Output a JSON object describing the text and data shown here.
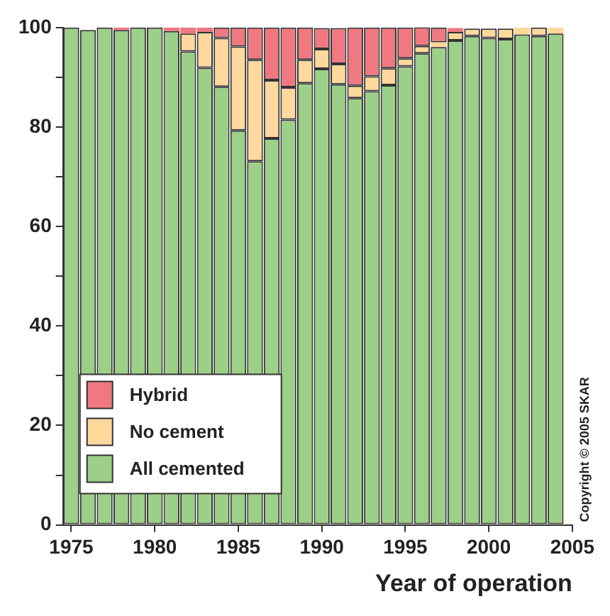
{
  "chart_data": {
    "type": "bar",
    "stacked": true,
    "xlabel": "Year of operation",
    "x": [
      1975,
      1976,
      1977,
      1978,
      1979,
      1980,
      1981,
      1982,
      1983,
      1984,
      1985,
      1986,
      1987,
      1988,
      1989,
      1990,
      1991,
      1992,
      1993,
      1994,
      1995,
      1996,
      1997,
      1998,
      1999,
      2000,
      2001,
      2002,
      2003,
      2004
    ],
    "series": [
      {
        "name": "All cemented",
        "color": "#9ccf88",
        "values": [
          100,
          99.5,
          100,
          99.5,
          100,
          100,
          99.3,
          95.2,
          91.9,
          88.1,
          79.3,
          73.1,
          77.7,
          81.5,
          88.8,
          91.7,
          88.6,
          85.8,
          87.2,
          88.4,
          92.2,
          94.8,
          96.1,
          97.4,
          98.3,
          97.9,
          97.7,
          98.6,
          98.3,
          98.8
        ]
      },
      {
        "name": "No cement",
        "color": "#fed89c",
        "values": [
          0,
          0,
          0,
          0,
          0,
          0,
          0,
          3.6,
          7.2,
          9.8,
          16.9,
          20.4,
          11.7,
          6.5,
          4.7,
          4.0,
          4.1,
          2.5,
          3.0,
          3.4,
          1.6,
          1.5,
          0.9,
          1.7,
          1.5,
          1.9,
          2.1,
          1.4,
          1.7,
          1.2
        ]
      },
      {
        "name": "Hybrid",
        "color": "#f07880",
        "values": [
          0,
          0,
          0,
          0.5,
          0,
          0,
          0.7,
          1.2,
          0.9,
          2.1,
          3.8,
          6.5,
          10.6,
          12.0,
          6.5,
          4.2,
          7.2,
          11.7,
          9.8,
          8.2,
          6.2,
          3.8,
          3.0,
          0.8,
          null,
          null,
          null,
          0,
          0,
          0
        ]
      }
    ],
    "xlim": [
      1974.5,
      2005
    ],
    "xticks": [
      1975,
      1980,
      1985,
      1990,
      1995,
      2000,
      2005
    ],
    "ylim": [
      0,
      100
    ],
    "yticks": [
      0,
      {
        "value": 10,
        "label": null
      },
      20,
      {
        "value": 30,
        "label": null
      },
      40,
      {
        "value": 50,
        "label": null
      },
      60,
      {
        "value": 70,
        "label": null
      },
      80,
      {
        "value": 90,
        "label": null
      },
      100
    ],
    "grid": false,
    "legend": "bottom left",
    "annotations": [
      "Copyright © 2005 SKAR"
    ]
  }
}
